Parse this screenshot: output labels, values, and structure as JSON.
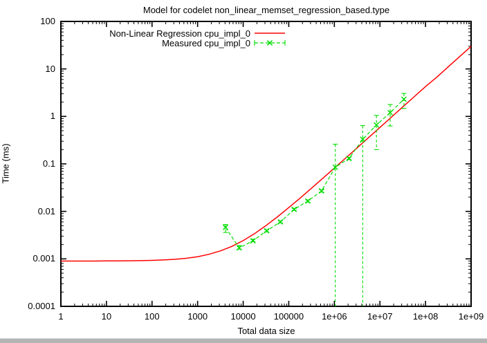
{
  "window": {
    "background": "#ffffff",
    "scrollbar_color": "#b4b4b4"
  },
  "chart_data": {
    "type": "line",
    "title": "Model for codelet non_linear_memset_regression_based.type",
    "xlabel": "Total data size",
    "ylabel": "Time (ms)",
    "x_scale": "log",
    "y_scale": "log",
    "xlim": [
      1,
      1000000000
    ],
    "ylim": [
      0.0001,
      100
    ],
    "grid": false,
    "legend_position": "top-center-inside",
    "x_ticks": [
      1,
      10,
      100,
      1000,
      10000,
      100000,
      1000000,
      10000000,
      100000000,
      1000000000
    ],
    "x_tick_labels": [
      "1",
      "10",
      "100",
      "1000",
      "10000",
      "100000",
      "1e+06",
      "1e+07",
      "1e+08",
      "1e+09"
    ],
    "y_ticks": [
      100,
      10,
      1,
      0.1,
      0.01,
      0.001,
      0.0001
    ],
    "y_tick_labels": [
      "100",
      "10",
      "1",
      "0.1",
      "0.01",
      "0.001",
      "0.0001"
    ],
    "series": [
      {
        "name": "Non-Linear Regression cpu_impl_0",
        "style": "solid-line",
        "color": "#ff0000",
        "points": [
          [
            1,
            0.0009
          ],
          [
            1.78,
            0.0009
          ],
          [
            3.16,
            0.0009
          ],
          [
            5.62,
            0.0009
          ],
          [
            10,
            0.000904
          ],
          [
            17.8,
            0.000907
          ],
          [
            31.6,
            0.000911
          ],
          [
            56.2,
            0.000918
          ],
          [
            100,
            0.000929
          ],
          [
            178,
            0.000948
          ],
          [
            316,
            0.000978
          ],
          [
            562,
            0.00103
          ],
          [
            1000,
            0.00111
          ],
          [
            1780,
            0.00125
          ],
          [
            3160,
            0.00147
          ],
          [
            5620,
            0.00183
          ],
          [
            10000,
            0.00243
          ],
          [
            17800,
            0.00341
          ],
          [
            31600,
            0.00502
          ],
          [
            56200,
            0.00766
          ],
          [
            100000,
            0.012
          ],
          [
            178000,
            0.0191
          ],
          [
            316000,
            0.0308
          ],
          [
            562000,
            0.05
          ],
          [
            1000000,
            0.0815
          ],
          [
            1780000,
            0.133
          ],
          [
            3160000,
            0.218
          ],
          [
            5620000,
            0.357
          ],
          [
            10000000,
            0.586
          ],
          [
            17800000,
            0.962
          ],
          [
            31600000,
            1.58
          ],
          [
            56200000,
            2.59
          ],
          [
            100000000,
            4.25
          ],
          [
            178000000,
            6.74
          ],
          [
            316000000,
            11.1
          ],
          [
            562000000,
            18.2
          ],
          [
            1000000000,
            29.8
          ]
        ]
      },
      {
        "name": "Measured cpu_impl_0",
        "style": "dashed-line-x-markers-yerrorbars",
        "color": "#00dd00",
        "points": [
          [
            4096,
            0.0046,
            0.0036,
            0.0053
          ],
          [
            8192,
            0.0017,
            0.0016,
            0.0019
          ],
          [
            16384,
            0.0024,
            0.0023,
            0.0026
          ],
          [
            32768,
            0.0039,
            0.0037,
            0.0041
          ],
          [
            65536,
            0.006,
            0.0057,
            0.0063
          ],
          [
            131072,
            0.011,
            0.0105,
            0.0116
          ],
          [
            262144,
            0.0165,
            0.0157,
            0.0174
          ],
          [
            524288,
            0.027,
            0.0255,
            0.0285
          ],
          [
            1048576,
            0.085,
            0.0001,
            0.26
          ],
          [
            2097152,
            0.13,
            0.123,
            0.138
          ],
          [
            4194304,
            0.33,
            0.0001,
            0.64
          ],
          [
            8388608,
            0.66,
            0.2,
            1.05
          ],
          [
            16777216,
            1.2,
            0.63,
            1.78
          ],
          [
            33554432,
            2.3,
            1.47,
            3.05
          ]
        ]
      }
    ]
  }
}
